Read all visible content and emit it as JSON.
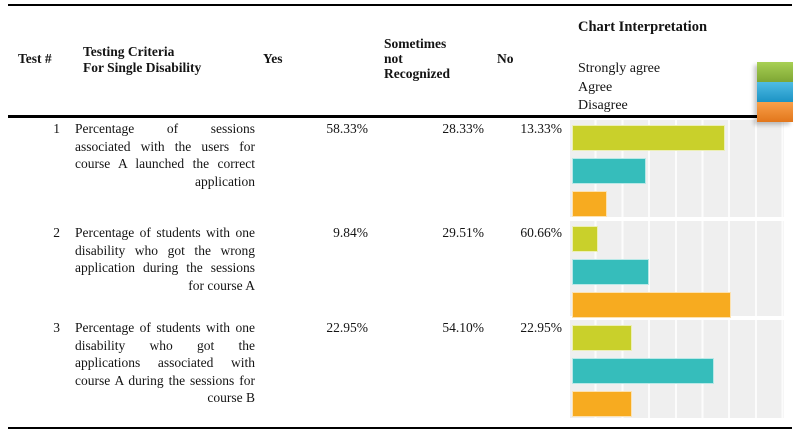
{
  "table": {
    "header": {
      "test": "Test #",
      "criteria": "Testing Criteria\nFor Single Disability",
      "yes": "Yes",
      "sometimes": "Sometimes\nnot\nRecognized",
      "no": "No"
    },
    "rows": [
      {
        "test": "1",
        "criteria": "Percentage of sessions associated with the users for course A launched the correct application",
        "yes": "58.33%",
        "sometimes": "28.33%",
        "no": "13.33%"
      },
      {
        "test": "2",
        "criteria": "Percentage of students with one disability who got the wrong application during the sessions for course A",
        "yes": "9.84%",
        "sometimes": "29.51%",
        "no": "60.66%"
      },
      {
        "test": "3",
        "criteria": "Percentage of students with one disability who got the applications associated with course A during the sessions for course B",
        "yes": "22.95%",
        "sometimes": "54.10%",
        "no": "22.95%"
      }
    ]
  },
  "legend": {
    "title": "Chart Interpretation",
    "items": [
      {
        "label": "Strongly agree",
        "gradient_top": "#A8D054",
        "gradient_bottom": "#7EA634"
      },
      {
        "label": "Agree",
        "gradient_top": "#4FBCE4",
        "gradient_bottom": "#1C93C4"
      },
      {
        "label": "Disagree",
        "gradient_top": "#F9A04A",
        "gradient_bottom": "#E2761B"
      }
    ]
  },
  "chart_data": {
    "type": "bar",
    "orientation": "horizontal",
    "categories": [
      "Test 1",
      "Test 2",
      "Test 3"
    ],
    "series": [
      {
        "name": "Strongly agree (Yes)",
        "color": "#C9D02B",
        "values": [
          58.33,
          9.84,
          22.95
        ]
      },
      {
        "name": "Agree (Sometimes not Recognized)",
        "color": "#36BDBB",
        "values": [
          28.33,
          29.51,
          54.1
        ]
      },
      {
        "name": "Disagree (No)",
        "color": "#F7AB20",
        "values": [
          13.33,
          60.66,
          22.95
        ]
      }
    ],
    "xlim": [
      0,
      80
    ],
    "gridlines_every": 10,
    "grid": true,
    "plot_bg": "#efefef",
    "legend_position": "top-right",
    "title": "Chart Interpretation"
  },
  "colors": {
    "bar_strongly_agree": "#C9D02B",
    "bar_agree": "#36BDBB",
    "bar_disagree": "#F7AB20",
    "chart_background": "#efefef",
    "gridline": "#fcfcfc",
    "rule": "#000000"
  }
}
